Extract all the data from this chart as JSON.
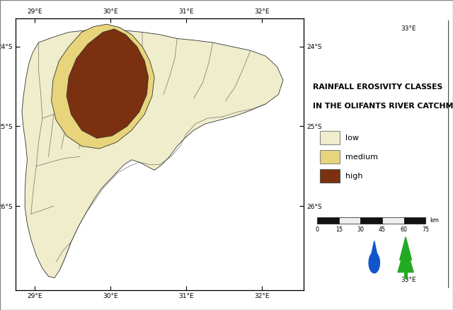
{
  "background_color": "#ffffff",
  "color_low": "#f0edcc",
  "color_medium": "#e8d47a",
  "color_high": "#7B3010",
  "border_color": "#333333",
  "line_color": "#444444",
  "xlim": [
    28.75,
    32.55
  ],
  "ylim": [
    -27.05,
    -23.65
  ],
  "xticks": [
    29.0,
    30.0,
    31.0,
    32.0
  ],
  "yticks": [
    -24.0,
    -25.0,
    -26.0
  ],
  "title_line1": "RAINFALL EROSIVITY CLASSES",
  "title_line2": "IN THE OLIFANTS RIVER CATCHMENT",
  "legend_labels": [
    "low",
    "medium",
    "high"
  ],
  "legend_colors": [
    "#f0edcc",
    "#e8d47a",
    "#7B3010"
  ],
  "legend_edge_colors": [
    "#888888",
    "#888888",
    "#555555"
  ],
  "scale_ticks": [
    0,
    15,
    30,
    45,
    60,
    75
  ],
  "catchment_outer": [
    [
      29.05,
      -23.95
    ],
    [
      29.25,
      -23.88
    ],
    [
      29.45,
      -23.82
    ],
    [
      29.65,
      -23.8
    ],
    [
      29.82,
      -23.78
    ],
    [
      30.0,
      -23.76
    ],
    [
      30.2,
      -23.8
    ],
    [
      30.42,
      -23.82
    ],
    [
      30.65,
      -23.85
    ],
    [
      30.88,
      -23.9
    ],
    [
      31.1,
      -23.92
    ],
    [
      31.35,
      -23.95
    ],
    [
      31.6,
      -24.0
    ],
    [
      31.85,
      -24.05
    ],
    [
      32.05,
      -24.12
    ],
    [
      32.2,
      -24.25
    ],
    [
      32.28,
      -24.42
    ],
    [
      32.22,
      -24.6
    ],
    [
      32.05,
      -24.72
    ],
    [
      31.85,
      -24.8
    ],
    [
      31.65,
      -24.87
    ],
    [
      31.45,
      -24.92
    ],
    [
      31.25,
      -24.97
    ],
    [
      31.1,
      -25.05
    ],
    [
      30.98,
      -25.15
    ],
    [
      30.88,
      -25.25
    ],
    [
      30.78,
      -25.38
    ],
    [
      30.68,
      -25.48
    ],
    [
      30.58,
      -25.55
    ],
    [
      30.48,
      -25.5
    ],
    [
      30.38,
      -25.45
    ],
    [
      30.28,
      -25.42
    ],
    [
      30.18,
      -25.48
    ],
    [
      30.08,
      -25.58
    ],
    [
      29.98,
      -25.68
    ],
    [
      29.88,
      -25.78
    ],
    [
      29.78,
      -25.92
    ],
    [
      29.68,
      -26.08
    ],
    [
      29.58,
      -26.25
    ],
    [
      29.48,
      -26.45
    ],
    [
      29.4,
      -26.65
    ],
    [
      29.33,
      -26.8
    ],
    [
      29.26,
      -26.9
    ],
    [
      29.18,
      -26.88
    ],
    [
      29.1,
      -26.78
    ],
    [
      29.02,
      -26.62
    ],
    [
      28.95,
      -26.42
    ],
    [
      28.9,
      -26.22
    ],
    [
      28.87,
      -26.02
    ],
    [
      28.87,
      -25.82
    ],
    [
      28.88,
      -25.62
    ],
    [
      28.9,
      -25.42
    ],
    [
      28.88,
      -25.22
    ],
    [
      28.85,
      -25.02
    ],
    [
      28.83,
      -24.82
    ],
    [
      28.85,
      -24.62
    ],
    [
      28.88,
      -24.42
    ],
    [
      28.92,
      -24.22
    ],
    [
      28.97,
      -24.08
    ],
    [
      29.05,
      -23.95
    ]
  ],
  "medium_zone": [
    [
      29.62,
      -23.82
    ],
    [
      29.78,
      -23.75
    ],
    [
      29.95,
      -23.72
    ],
    [
      30.12,
      -23.76
    ],
    [
      30.28,
      -23.85
    ],
    [
      30.42,
      -24.0
    ],
    [
      30.52,
      -24.18
    ],
    [
      30.58,
      -24.38
    ],
    [
      30.55,
      -24.62
    ],
    [
      30.45,
      -24.85
    ],
    [
      30.28,
      -25.05
    ],
    [
      30.08,
      -25.2
    ],
    [
      29.85,
      -25.28
    ],
    [
      29.62,
      -25.25
    ],
    [
      29.42,
      -25.12
    ],
    [
      29.28,
      -24.92
    ],
    [
      29.22,
      -24.68
    ],
    [
      29.24,
      -24.42
    ],
    [
      29.32,
      -24.18
    ],
    [
      29.45,
      -24.0
    ],
    [
      29.62,
      -23.82
    ]
  ],
  "high_zone": [
    [
      29.9,
      -23.82
    ],
    [
      30.05,
      -23.78
    ],
    [
      30.2,
      -23.85
    ],
    [
      30.35,
      -24.0
    ],
    [
      30.45,
      -24.18
    ],
    [
      30.5,
      -24.38
    ],
    [
      30.48,
      -24.6
    ],
    [
      30.38,
      -24.82
    ],
    [
      30.22,
      -25.0
    ],
    [
      30.02,
      -25.12
    ],
    [
      29.82,
      -25.15
    ],
    [
      29.62,
      -25.05
    ],
    [
      29.48,
      -24.85
    ],
    [
      29.42,
      -24.62
    ],
    [
      29.45,
      -24.38
    ],
    [
      29.55,
      -24.15
    ],
    [
      29.7,
      -23.97
    ],
    [
      29.9,
      -23.82
    ]
  ],
  "subcatch_lines": [
    [
      [
        29.05,
        -23.95
      ],
      [
        29.05,
        -24.3
      ],
      [
        29.08,
        -24.6
      ],
      [
        29.1,
        -24.9
      ]
    ],
    [
      [
        29.1,
        -24.9
      ],
      [
        29.25,
        -24.85
      ],
      [
        29.45,
        -24.8
      ],
      [
        29.7,
        -24.78
      ]
    ],
    [
      [
        29.1,
        -24.9
      ],
      [
        29.05,
        -25.2
      ],
      [
        29.02,
        -25.5
      ]
    ],
    [
      [
        29.02,
        -25.5
      ],
      [
        29.2,
        -25.45
      ],
      [
        29.4,
        -25.4
      ],
      [
        29.6,
        -25.38
      ]
    ],
    [
      [
        29.02,
        -25.5
      ],
      [
        28.98,
        -25.8
      ],
      [
        28.95,
        -26.1
      ]
    ],
    [
      [
        28.95,
        -26.1
      ],
      [
        29.1,
        -26.05
      ],
      [
        29.25,
        -26.0
      ]
    ],
    [
      [
        29.33,
        -26.8
      ],
      [
        29.4,
        -26.65
      ],
      [
        29.48,
        -26.45
      ]
    ],
    [
      [
        29.48,
        -26.45
      ],
      [
        29.58,
        -26.25
      ],
      [
        29.68,
        -26.08
      ]
    ],
    [
      [
        29.68,
        -26.08
      ],
      [
        29.8,
        -25.92
      ],
      [
        29.9,
        -25.78
      ]
    ],
    [
      [
        29.9,
        -25.78
      ],
      [
        30.0,
        -25.68
      ],
      [
        30.1,
        -25.58
      ],
      [
        30.25,
        -25.5
      ]
    ],
    [
      [
        30.25,
        -25.5
      ],
      [
        30.38,
        -25.45
      ],
      [
        30.52,
        -25.48
      ],
      [
        30.65,
        -25.48
      ]
    ],
    [
      [
        30.65,
        -25.48
      ],
      [
        30.8,
        -25.38
      ],
      [
        30.92,
        -25.25
      ],
      [
        31.0,
        -25.1
      ]
    ],
    [
      [
        31.0,
        -25.1
      ],
      [
        31.12,
        -24.97
      ],
      [
        31.28,
        -24.9
      ],
      [
        31.48,
        -24.88
      ]
    ],
    [
      [
        31.48,
        -24.88
      ],
      [
        31.68,
        -24.82
      ],
      [
        31.88,
        -24.78
      ],
      [
        32.05,
        -24.72
      ]
    ],
    [
      [
        30.42,
        -23.82
      ],
      [
        30.42,
        -24.05
      ],
      [
        30.38,
        -24.25
      ]
    ],
    [
      [
        30.88,
        -23.9
      ],
      [
        30.85,
        -24.15
      ],
      [
        30.78,
        -24.38
      ],
      [
        30.7,
        -24.6
      ]
    ],
    [
      [
        31.35,
        -23.95
      ],
      [
        31.3,
        -24.2
      ],
      [
        31.22,
        -24.45
      ],
      [
        31.1,
        -24.65
      ]
    ],
    [
      [
        31.85,
        -24.05
      ],
      [
        31.75,
        -24.28
      ],
      [
        31.65,
        -24.5
      ],
      [
        31.52,
        -24.68
      ]
    ],
    [
      [
        29.48,
        -26.45
      ],
      [
        29.38,
        -26.55
      ],
      [
        29.28,
        -26.7
      ]
    ],
    [
      [
        29.25,
        -24.85
      ],
      [
        29.22,
        -25.1
      ],
      [
        29.18,
        -25.38
      ]
    ],
    [
      [
        29.45,
        -24.8
      ],
      [
        29.4,
        -25.05
      ],
      [
        29.35,
        -25.28
      ]
    ],
    [
      [
        29.7,
        -24.78
      ],
      [
        29.65,
        -25.05
      ],
      [
        29.58,
        -25.28
      ]
    ]
  ]
}
